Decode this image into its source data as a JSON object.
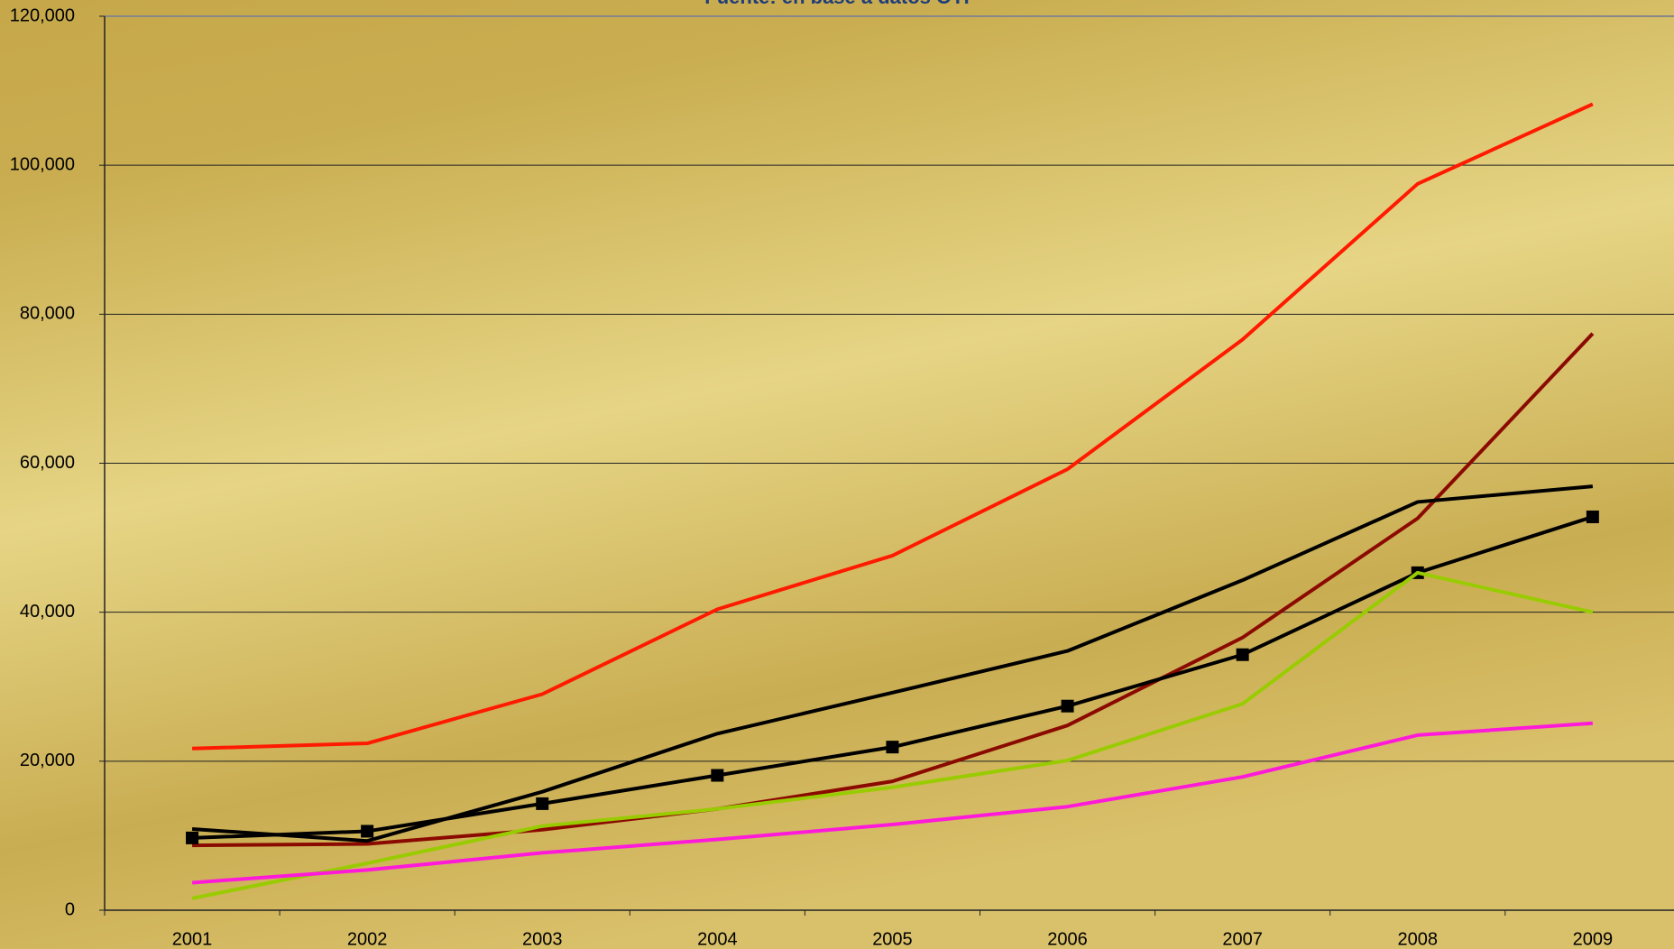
{
  "chart_data": {
    "type": "line",
    "title": "Fuente: en base a datos OTI",
    "categories": [
      "2001",
      "2002",
      "2003",
      "2004",
      "2005",
      "2006",
      "2007",
      "2008",
      "2009"
    ],
    "series": [
      {
        "color": "#ff1a00",
        "values": [
          21700,
          22400,
          29000,
          40400,
          47600,
          59200,
          76600,
          97500,
          108200
        ]
      },
      {
        "color": "#8b0a00",
        "values": [
          8700,
          8900,
          10800,
          13600,
          17300,
          24800,
          36600,
          52600,
          77400
        ]
      },
      {
        "color": "#000000",
        "values": [
          10900,
          9300,
          15900,
          23700,
          29200,
          34800,
          44300,
          54800,
          56900
        ]
      },
      {
        "color": "#000000",
        "marker": "square",
        "values": [
          9700,
          10600,
          14300,
          18100,
          21900,
          27400,
          34300,
          45300,
          52800
        ]
      },
      {
        "color": "#99cc00",
        "values": [
          1600,
          6300,
          11300,
          13600,
          16500,
          20100,
          27700,
          45300,
          40000
        ]
      },
      {
        "color": "#ff1ad9",
        "values": [
          3700,
          5400,
          7700,
          9500,
          11500,
          13900,
          17900,
          23500,
          25100
        ]
      }
    ],
    "ylim": [
      0,
      120000
    ],
    "yticks": [
      0,
      {
        "value": 20000,
        "label": "20,000"
      },
      {
        "value": 40000,
        "label": "40,000"
      },
      {
        "value": 60000,
        "label": "60,000"
      },
      {
        "value": 80000,
        "label": "80,000"
      },
      {
        "value": 100000,
        "label": "100,000"
      },
      {
        "value": 120000,
        "label": "120,000"
      }
    ],
    "grid": true
  }
}
